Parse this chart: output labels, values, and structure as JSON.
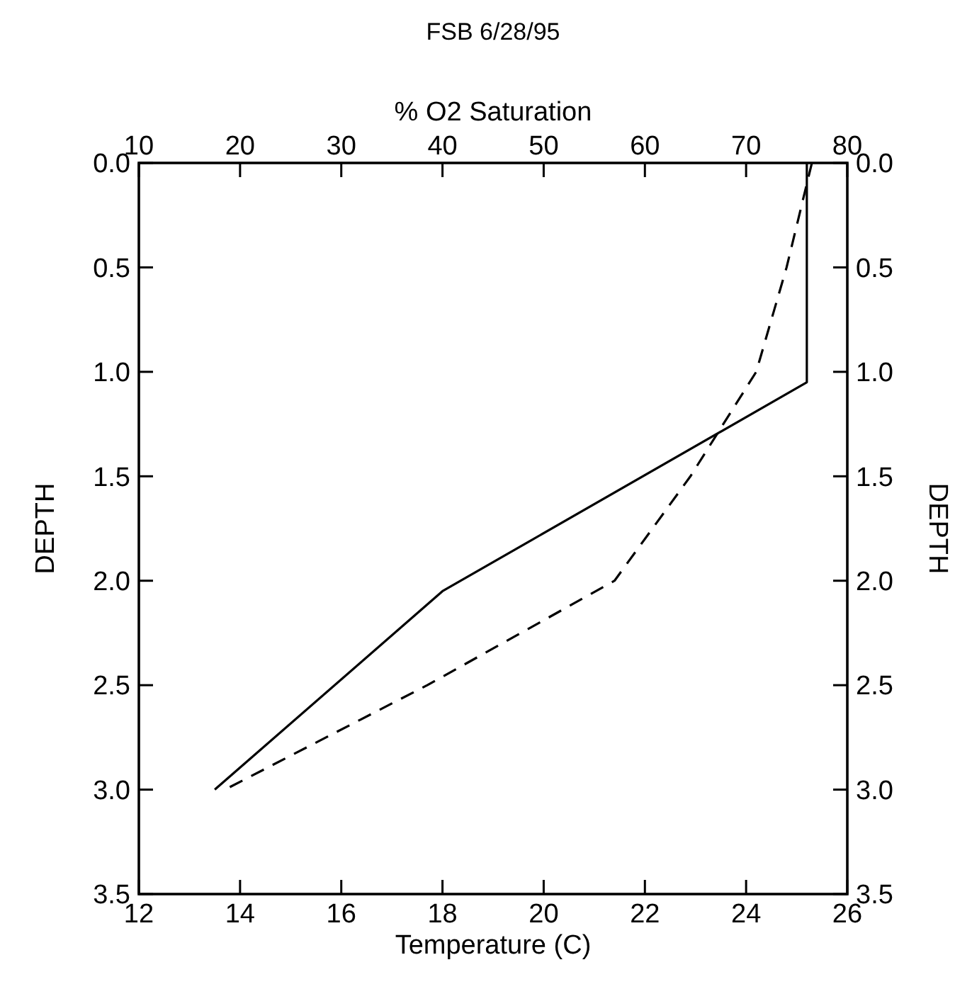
{
  "chart_data": {
    "type": "line",
    "title": "FSB 6/28/95",
    "xlabel": "Temperature (C)",
    "x2label": "% O2 Saturation",
    "ylabel": "DEPTH",
    "y2label": "DEPTH",
    "xlim": [
      12,
      26
    ],
    "xticks": [
      12,
      14,
      16,
      18,
      20,
      22,
      24,
      26
    ],
    "x2lim": [
      10,
      80
    ],
    "x2ticks": [
      10,
      20,
      30,
      40,
      50,
      60,
      70,
      80
    ],
    "ylim": [
      3.5,
      0
    ],
    "yticks": [
      {
        "value": 0,
        "label": "0.0"
      },
      {
        "value": 0.5,
        "label": "0.5"
      },
      {
        "value": 1,
        "label": "1.0"
      },
      {
        "value": 1.5,
        "label": "1.5"
      },
      {
        "value": 2,
        "label": "2.0"
      },
      {
        "value": 2.5,
        "label": "2.5"
      },
      {
        "value": 3,
        "label": "3.0"
      },
      {
        "value": 3.5,
        "label": "3.5"
      }
    ],
    "y2lim": [
      3.5,
      0
    ],
    "y2ticks": [
      {
        "value": 0,
        "label": "0.0"
      },
      {
        "value": 0.5,
        "label": "0.5"
      },
      {
        "value": 1,
        "label": "1.0"
      },
      {
        "value": 1.5,
        "label": "1.5"
      },
      {
        "value": 2,
        "label": "2.0"
      },
      {
        "value": 2.5,
        "label": "2.5"
      },
      {
        "value": 3,
        "label": "3.0"
      },
      {
        "value": 3.5,
        "label": "3.5"
      }
    ],
    "grid": false,
    "marker": "none",
    "series": [
      {
        "color": "#000000",
        "line_style": "solid",
        "x": [
          25.2,
          25.2,
          18.0,
          13.5
        ],
        "values": [
          0,
          1.05,
          2.05,
          3.0
        ]
      },
      {
        "color": "#000000",
        "line_style": "dashed",
        "axis": "x2",
        "x": [
          76.5,
          74,
          71,
          64.5,
          57,
          38.5,
          18.5
        ],
        "values": [
          0,
          0.5,
          1.0,
          1.5,
          2.0,
          2.5,
          3.0
        ]
      }
    ]
  }
}
